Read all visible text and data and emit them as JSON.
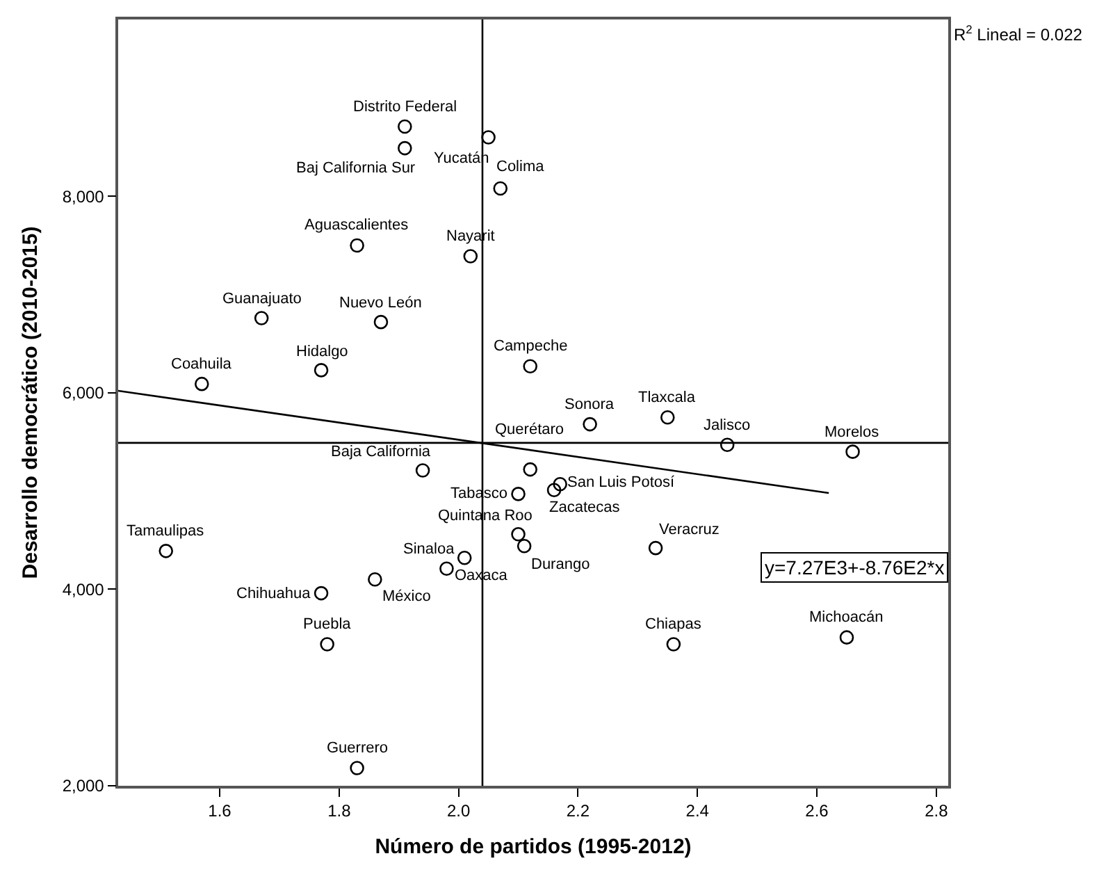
{
  "chart_data": {
    "type": "scatter",
    "xlabel": "Número de partidos (1995-2012)",
    "ylabel": "Desarrollo democrático (2010-2015)",
    "xlim": [
      1.43,
      2.82
    ],
    "ylim": [
      2000,
      9800
    ],
    "xticks": [
      1.6,
      1.8,
      {
        "value": 2.0,
        "label": "2.0"
      },
      2.2,
      2.4,
      2.6,
      2.8
    ],
    "yticks": [
      {
        "value": 2000,
        "label": "2,000"
      },
      {
        "value": 4000,
        "label": "4,000"
      },
      {
        "value": 6000,
        "label": "6,000"
      },
      {
        "value": 8000,
        "label": "8,000"
      }
    ],
    "grid": false,
    "marker": "circle",
    "series": [
      {
        "color": "#000000",
        "x": [
          1.91,
          1.91,
          2.05,
          2.07,
          1.83,
          2.02,
          1.67,
          1.87,
          1.77,
          1.57,
          2.12,
          2.22,
          2.35,
          2.45,
          2.66,
          1.94,
          2.12,
          2.1,
          2.17,
          2.16,
          2.1,
          2.11,
          1.98,
          2.01,
          1.86,
          1.77,
          1.51,
          1.78,
          1.83,
          2.33,
          2.36,
          2.65
        ],
        "values": [
          8710,
          8490,
          8600,
          8080,
          7500,
          7390,
          6760,
          6720,
          6230,
          6090,
          6270,
          5680,
          5750,
          5470,
          5400,
          5210,
          5220,
          4970,
          5070,
          5010,
          4560,
          4440,
          4210,
          4320,
          4100,
          3960,
          4390,
          3440,
          2180,
          4420,
          3440,
          3510
        ]
      },
      {
        "type": "line",
        "color": "#000000",
        "line_style": "solid",
        "marker": "none",
        "x": [
          1.43,
          2.62
        ],
        "values": [
          6020,
          4980
        ]
      }
    ],
    "ref_lines": [
      {
        "axis": "x",
        "value": 2.04,
        "color": "#000000"
      },
      {
        "axis": "y",
        "value": 5490,
        "color": "#000000"
      }
    ],
    "annotations": [
      {
        "text": "Distrito Federal",
        "x": 1.91,
        "y": 8710
      },
      {
        "text": "Baj California Sur",
        "x": 1.91,
        "y": 8490
      },
      {
        "text": "Yucatán",
        "x": 2.05,
        "y": 8600
      },
      {
        "text": "Colima",
        "x": 2.07,
        "y": 8075
      },
      {
        "text": "Aguascalientes",
        "x": 1.83,
        "y": 7500
      },
      {
        "text": "Nayarit",
        "x": 2.02,
        "y": 7390
      },
      {
        "text": "Guanajuato",
        "x": 1.67,
        "y": 6760
      },
      {
        "text": "Nuevo León",
        "x": 1.87,
        "y": 6715
      },
      {
        "text": "Hidalgo",
        "x": 1.77,
        "y": 6225
      },
      {
        "text": "Coahuila",
        "x": 1.57,
        "y": 6085
      },
      {
        "text": "Campeche",
        "x": 2.12,
        "y": 6270
      },
      {
        "text": "Sonora",
        "x": 2.22,
        "y": 5680
      },
      {
        "text": "Tlaxcala",
        "x": 2.35,
        "y": 5750
      },
      {
        "text": "Jalisco",
        "x": 2.45,
        "y": 5470
      },
      {
        "text": "Morelos",
        "x": 2.66,
        "y": 5400
      },
      {
        "text": "Baja California",
        "x": 1.94,
        "y": 5205
      },
      {
        "text": "Querétaro",
        "x": 2.12,
        "y": 5220
      },
      {
        "text": "Tabasco",
        "x": 2.1,
        "y": 4970
      },
      {
        "text": "San Luis Potosí",
        "x": 2.17,
        "y": 5065
      },
      {
        "text": "Zacatecas",
        "x": 2.16,
        "y": 5010
      },
      {
        "text": "Quintana Roo",
        "x": 2.1,
        "y": 4560
      },
      {
        "text": "Durango",
        "x": 2.11,
        "y": 4435
      },
      {
        "text": "Sinaloa",
        "x": 1.98,
        "y": 4210
      },
      {
        "text": "Oaxaca",
        "x": 2.01,
        "y": 4320
      },
      {
        "text": "México",
        "x": 1.86,
        "y": 4100
      },
      {
        "text": "Chihuahua",
        "x": 1.77,
        "y": 3960
      },
      {
        "text": "Tamaulipas",
        "x": 1.51,
        "y": 4390
      },
      {
        "text": "Puebla",
        "x": 1.78,
        "y": 3440
      },
      {
        "text": "Guerrero",
        "x": 1.83,
        "y": 2180
      },
      {
        "text": "Veracruz",
        "x": 2.33,
        "y": 4420
      },
      {
        "text": "Chiapas",
        "x": 2.36,
        "y": 3440
      },
      {
        "text": "Michoacán",
        "x": 2.65,
        "y": 3510
      },
      "R$^{2}$ Lineal = 0.022",
      "y=7.27E3+-8.76E2*x"
    ]
  }
}
